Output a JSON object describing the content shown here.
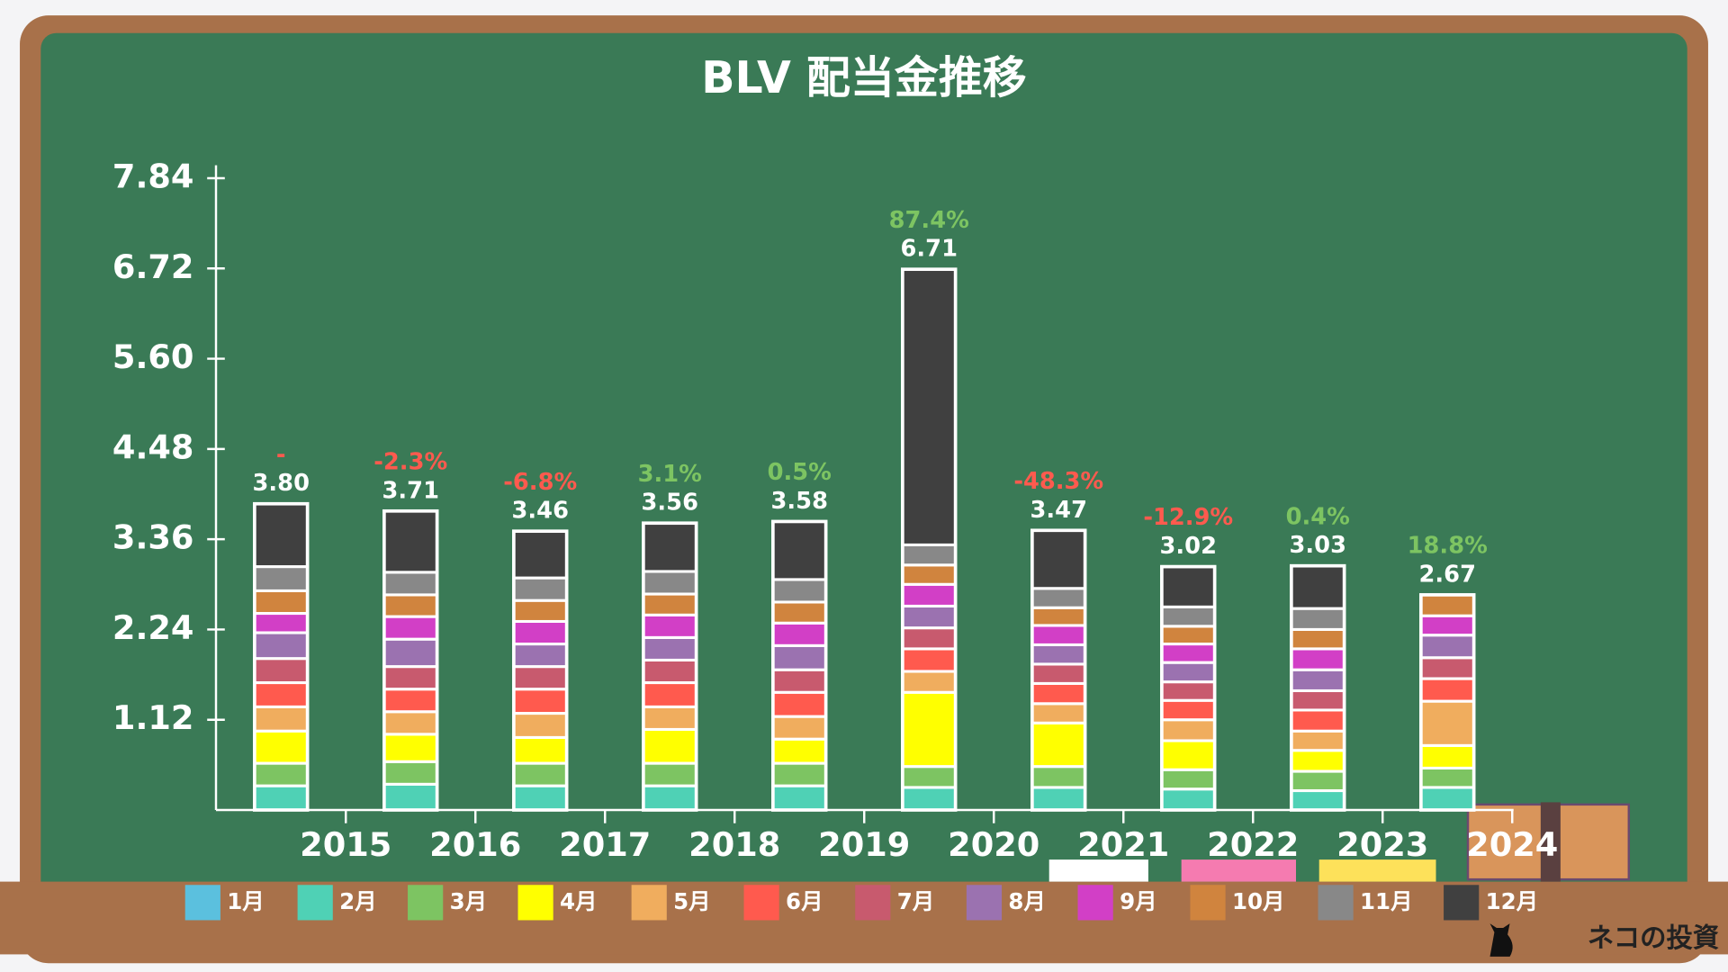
{
  "chart_data": {
    "type": "stacked_bar",
    "title": "BLV 配当金推移",
    "watermark": "ネコの投資",
    "categories": [
      "2015",
      "2016",
      "2017",
      "2018",
      "2019",
      "2020",
      "2021",
      "2022",
      "2023",
      "2024"
    ],
    "ylim": [
      0,
      8
    ],
    "yticks": [
      1.12,
      2.24,
      3.36,
      4.48,
      {
        "value": 5.6,
        "label": "5.60"
      },
      6.72,
      7.84
    ],
    "totals": [
      {
        "value": 3.8,
        "label": "3.80"
      },
      3.71,
      3.46,
      3.56,
      3.58,
      6.71,
      3.47,
      3.02,
      3.03,
      2.67
    ],
    "growth_labels": [
      "-",
      "-2.3%",
      "-6.8%",
      "3.1%",
      "0.5%",
      "87.4%",
      "-48.3%",
      "-12.9%",
      "0.4%",
      "18.8%"
    ],
    "growth_colors": [
      "#ff5a4e",
      "#ff5a4e",
      "#ff5a4e",
      "#7dc462",
      "#7dc462",
      "#7dc462",
      "#ff5a4e",
      "#ff5a4e",
      "#7dc462",
      "#7dc462"
    ],
    "series": [
      {
        "name": "1月",
        "color": "#5bc0de",
        "values": [
          null,
          null,
          null,
          null,
          null,
          null,
          null,
          null,
          null,
          null
        ]
      },
      {
        "name": "2月",
        "color": "#4fd1b5",
        "values": [
          0.3,
          0.32,
          0.3,
          0.3,
          0.3,
          0.28,
          0.28,
          0.26,
          0.24,
          0.28
        ]
      },
      {
        "name": "3月",
        "color": "#7dc462",
        "values": [
          0.28,
          0.28,
          0.28,
          0.28,
          0.28,
          0.26,
          0.26,
          0.24,
          0.24,
          0.24
        ]
      },
      {
        "name": "4月",
        "color": "#ffff00",
        "values": [
          0.4,
          0.34,
          0.32,
          0.42,
          0.3,
          0.92,
          0.54,
          0.36,
          0.26,
          0.28
        ]
      },
      {
        "name": "5月",
        "color": "#f0ad5e",
        "values": [
          0.3,
          0.28,
          0.3,
          0.28,
          0.28,
          0.26,
          0.24,
          0.26,
          0.24,
          0.55
        ]
      },
      {
        "name": "6月",
        "color": "#ff5a4e",
        "values": [
          0.3,
          0.28,
          0.3,
          0.3,
          0.3,
          0.28,
          0.25,
          0.24,
          0.26,
          0.28
        ]
      },
      {
        "name": "7月",
        "color": "#c85a6e",
        "values": [
          0.3,
          0.28,
          0.28,
          0.28,
          0.28,
          0.26,
          0.24,
          0.23,
          0.24,
          0.26
        ]
      },
      {
        "name": "8月",
        "color": "#9b72b0",
        "values": [
          0.32,
          0.34,
          0.28,
          0.28,
          0.3,
          0.27,
          0.24,
          0.24,
          0.26,
          0.28
        ]
      },
      {
        "name": "9月",
        "color": "#d23fc6",
        "values": [
          0.24,
          0.28,
          0.28,
          0.28,
          0.28,
          0.27,
          0.24,
          0.23,
          0.26,
          0.24
        ]
      },
      {
        "name": "10月",
        "color": "#d0843e",
        "values": [
          0.28,
          0.27,
          0.26,
          0.26,
          0.26,
          0.24,
          0.22,
          0.22,
          0.24,
          0.26
        ]
      },
      {
        "name": "11月",
        "color": "#888888",
        "values": [
          0.3,
          0.28,
          0.28,
          0.28,
          0.28,
          0.25,
          0.24,
          0.24,
          0.26,
          null
        ]
      },
      {
        "name": "12月",
        "color": "#404040",
        "values": [
          0.78,
          0.76,
          0.58,
          0.6,
          0.72,
          3.42,
          0.72,
          0.5,
          0.53,
          null
        ]
      }
    ]
  }
}
